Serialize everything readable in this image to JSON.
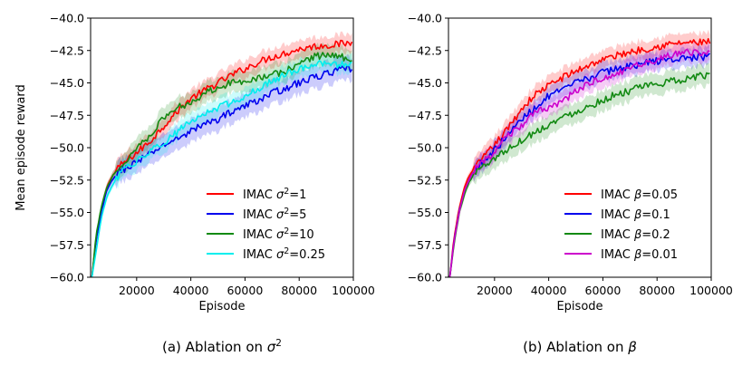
{
  "chart_data": [
    {
      "type": "line",
      "caption": "(a) Ablation on σ²",
      "caption_parts": [
        "(a) Ablation on ",
        "σ",
        "2"
      ],
      "xlabel": "Episode",
      "ylabel": "Mean episode reward",
      "xlim": [
        3000,
        100000
      ],
      "ylim": [
        -60.0,
        -40.0
      ],
      "xticks": [
        20000,
        40000,
        60000,
        80000,
        100000
      ],
      "xtick_labels": [
        "20000",
        "40000",
        "60000",
        "80000",
        "100000"
      ],
      "yticks": [
        -60.0,
        -57.5,
        -55.0,
        -52.5,
        -50.0,
        -47.5,
        -45.0,
        -42.5,
        -40.0
      ],
      "ytick_labels": [
        "−60.0",
        "−57.5",
        "−55.0",
        "−52.5",
        "−50.0",
        "−47.5",
        "−45.0",
        "−42.5",
        "−40.0"
      ],
      "legend_position": "lower-right",
      "series": [
        {
          "name": "IMAC σ²=1",
          "legend_prefix": "IMAC ",
          "legend_symbol": "σ",
          "legend_sup": "2",
          "legend_suffix": "=1",
          "color": "#ff0000",
          "band": 0.7,
          "x": [
            3500,
            5000,
            7000,
            9000,
            11000,
            13000,
            15000,
            20000,
            25000,
            30000,
            35000,
            40000,
            45000,
            50000,
            55000,
            60000,
            65000,
            70000,
            75000,
            80000,
            85000,
            90000,
            95000,
            100000
          ],
          "y": [
            -60.0,
            -57.0,
            -54.6,
            -53.0,
            -52.2,
            -51.6,
            -51.2,
            -50.4,
            -49.5,
            -48.3,
            -47.2,
            -46.2,
            -45.6,
            -45.0,
            -44.4,
            -43.9,
            -43.4,
            -43.0,
            -42.7,
            -42.4,
            -42.2,
            -42.1,
            -42.0,
            -41.9
          ]
        },
        {
          "name": "IMAC σ²=5",
          "legend_prefix": "IMAC ",
          "legend_symbol": "σ",
          "legend_sup": "2",
          "legend_suffix": "=5",
          "color": "#0000ee",
          "band": 0.9,
          "x": [
            3500,
            5000,
            7000,
            9000,
            11000,
            13000,
            15000,
            20000,
            25000,
            30000,
            35000,
            40000,
            45000,
            50000,
            55000,
            60000,
            65000,
            70000,
            75000,
            80000,
            85000,
            90000,
            95000,
            100000
          ],
          "y": [
            -60.0,
            -57.2,
            -54.9,
            -53.3,
            -52.5,
            -51.9,
            -51.7,
            -51.1,
            -50.5,
            -49.8,
            -49.3,
            -48.7,
            -48.2,
            -47.8,
            -47.2,
            -46.8,
            -46.3,
            -45.8,
            -45.4,
            -45.0,
            -44.6,
            -44.3,
            -44.0,
            -43.9
          ]
        },
        {
          "name": "IMAC σ²=10",
          "legend_prefix": "IMAC ",
          "legend_symbol": "σ",
          "legend_sup": "2",
          "legend_suffix": "=10",
          "color": "#138a13",
          "band": 0.8,
          "x": [
            3500,
            5000,
            7000,
            9000,
            11000,
            13000,
            15000,
            20000,
            25000,
            30000,
            35000,
            40000,
            45000,
            50000,
            55000,
            60000,
            65000,
            70000,
            75000,
            80000,
            85000,
            90000,
            95000,
            100000
          ],
          "y": [
            -60.0,
            -56.8,
            -54.5,
            -53.1,
            -52.2,
            -51.7,
            -51.3,
            -50.0,
            -49.0,
            -47.7,
            -46.9,
            -46.5,
            -45.8,
            -45.3,
            -45.0,
            -44.8,
            -44.6,
            -44.4,
            -44.1,
            -43.5,
            -43.0,
            -42.8,
            -43.0,
            -43.1
          ]
        },
        {
          "name": "IMAC σ²=0.25",
          "legend_prefix": "IMAC ",
          "legend_symbol": "σ",
          "legend_sup": "2",
          "legend_suffix": "=0.25",
          "color": "#00eeee",
          "band": 0.7,
          "x": [
            3500,
            5000,
            7000,
            9000,
            11000,
            13000,
            15000,
            20000,
            25000,
            30000,
            35000,
            40000,
            45000,
            50000,
            55000,
            60000,
            65000,
            70000,
            75000,
            80000,
            85000,
            90000,
            95000,
            100000
          ],
          "y": [
            -60.0,
            -58.0,
            -55.4,
            -53.8,
            -52.9,
            -52.3,
            -51.8,
            -51.0,
            -50.3,
            -49.6,
            -48.8,
            -48.0,
            -47.4,
            -46.9,
            -46.5,
            -46.0,
            -45.4,
            -44.9,
            -44.3,
            -43.9,
            -43.6,
            -43.5,
            -43.6,
            -43.7
          ]
        }
      ]
    },
    {
      "type": "line",
      "caption": "(b) Ablation on β",
      "caption_parts": [
        "(b) Ablation on ",
        "β",
        ""
      ],
      "xlabel": "Episode",
      "ylabel": "",
      "xlim": [
        3000,
        100000
      ],
      "ylim": [
        -60.0,
        -40.0
      ],
      "xticks": [
        20000,
        40000,
        60000,
        80000,
        100000
      ],
      "xtick_labels": [
        "20000",
        "40000",
        "60000",
        "80000",
        "100000"
      ],
      "yticks": [
        -60.0,
        -57.5,
        -55.0,
        -52.5,
        -50.0,
        -47.5,
        -45.0,
        -42.5,
        -40.0
      ],
      "ytick_labels": [
        "−60.0",
        "−57.5",
        "−55.0",
        "−52.5",
        "−50.0",
        "−47.5",
        "−45.0",
        "−42.5",
        "−40.0"
      ],
      "legend_position": "lower-right",
      "series": [
        {
          "name": "IMAC β=0.05",
          "legend_prefix": "IMAC ",
          "legend_symbol": "β",
          "legend_sup": "",
          "legend_suffix": "=0.05",
          "color": "#ff0000",
          "band": 0.7,
          "x": [
            3500,
            5000,
            7000,
            9000,
            11000,
            13000,
            15000,
            20000,
            25000,
            30000,
            35000,
            40000,
            45000,
            50000,
            55000,
            60000,
            65000,
            70000,
            75000,
            80000,
            85000,
            90000,
            95000,
            100000
          ],
          "y": [
            -60.0,
            -57.0,
            -54.6,
            -53.0,
            -52.0,
            -51.5,
            -51.0,
            -49.8,
            -48.5,
            -47.0,
            -45.9,
            -45.2,
            -44.6,
            -44.1,
            -43.6,
            -43.2,
            -42.9,
            -42.6,
            -42.4,
            -42.2,
            -42.0,
            -41.9,
            -41.9,
            -41.8
          ]
        },
        {
          "name": "IMAC β=0.1",
          "legend_prefix": "IMAC ",
          "legend_symbol": "β",
          "legend_sup": "",
          "legend_suffix": "=0.1",
          "color": "#0000ee",
          "band": 0.7,
          "x": [
            3500,
            5000,
            7000,
            9000,
            11000,
            13000,
            15000,
            20000,
            25000,
            30000,
            35000,
            40000,
            45000,
            50000,
            55000,
            60000,
            65000,
            70000,
            75000,
            80000,
            85000,
            90000,
            95000,
            100000
          ],
          "y": [
            -60.0,
            -57.2,
            -54.8,
            -53.3,
            -52.3,
            -51.6,
            -51.2,
            -50.2,
            -49.0,
            -47.8,
            -46.9,
            -46.0,
            -45.6,
            -45.0,
            -44.6,
            -44.2,
            -43.9,
            -43.7,
            -43.5,
            -43.3,
            -43.2,
            -43.1,
            -43.0,
            -43.0
          ]
        },
        {
          "name": "IMAC β=0.2",
          "legend_prefix": "IMAC ",
          "legend_symbol": "β",
          "legend_sup": "",
          "legend_suffix": "=0.2",
          "color": "#138a13",
          "band": 0.8,
          "x": [
            3500,
            5000,
            7000,
            9000,
            11000,
            13000,
            15000,
            20000,
            25000,
            30000,
            35000,
            40000,
            45000,
            50000,
            55000,
            60000,
            65000,
            70000,
            75000,
            80000,
            85000,
            90000,
            95000,
            100000
          ],
          "y": [
            -60.0,
            -57.5,
            -55.0,
            -53.5,
            -52.5,
            -51.9,
            -51.5,
            -50.8,
            -50.1,
            -49.4,
            -48.8,
            -48.2,
            -47.7,
            -47.2,
            -46.8,
            -46.3,
            -45.9,
            -45.6,
            -45.3,
            -45.1,
            -44.9,
            -44.7,
            -44.5,
            -44.4
          ]
        },
        {
          "name": "IMAC β=0.01",
          "legend_prefix": "IMAC ",
          "legend_symbol": "β",
          "legend_sup": "",
          "legend_suffix": "=0.01",
          "color": "#cc00cc",
          "band": 0.7,
          "x": [
            3500,
            5000,
            7000,
            9000,
            11000,
            13000,
            15000,
            20000,
            25000,
            30000,
            35000,
            40000,
            45000,
            50000,
            55000,
            60000,
            65000,
            70000,
            75000,
            80000,
            85000,
            90000,
            95000,
            100000
          ],
          "y": [
            -60.0,
            -57.3,
            -54.9,
            -53.3,
            -52.3,
            -51.6,
            -51.3,
            -50.3,
            -49.1,
            -48.3,
            -47.3,
            -46.9,
            -46.4,
            -45.7,
            -45.0,
            -44.7,
            -44.3,
            -43.9,
            -43.5,
            -43.2,
            -42.9,
            -42.7,
            -42.6,
            -42.6
          ]
        }
      ]
    }
  ]
}
